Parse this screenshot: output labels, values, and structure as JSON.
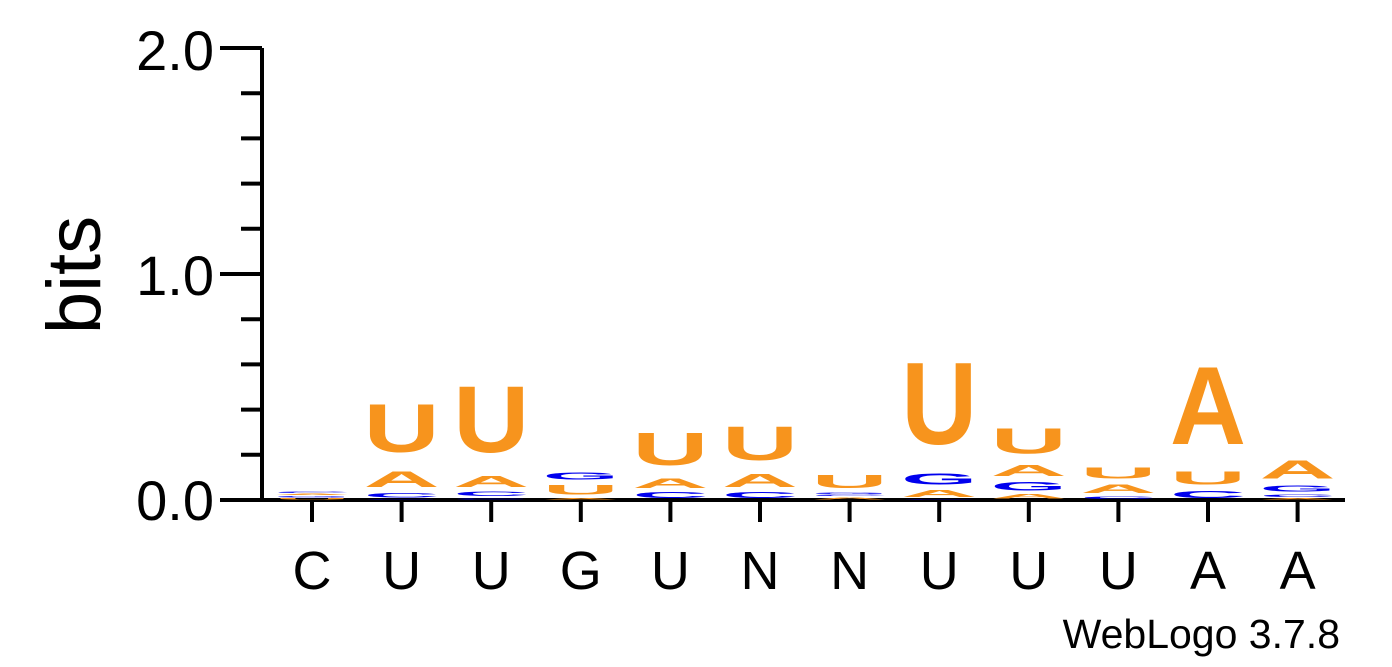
{
  "chart_data": {
    "type": "sequence-logo",
    "footer": "WebLogo 3.7.8",
    "xlabel": "",
    "ylabel": "bits",
    "ylim": [
      0,
      2
    ],
    "y_ticks": [
      "0.0",
      "1.0",
      "2.0"
    ],
    "categories": [
      "C",
      "U",
      "U",
      "G",
      "U",
      "N",
      "N",
      "U",
      "U",
      "U",
      "A",
      "A"
    ],
    "colors": {
      "A": "#f7941d",
      "U": "#f7941d",
      "G": "#0000ee",
      "C": "#0000ee"
    },
    "stacks": [
      [
        {
          "letter": "U",
          "height": 0.01
        },
        {
          "letter": "G",
          "height": 0.01
        },
        {
          "letter": "A",
          "height": 0.01
        },
        {
          "letter": "C",
          "height": 0.01
        }
      ],
      [
        {
          "letter": "G",
          "height": 0.005
        },
        {
          "letter": "C",
          "height": 0.03
        },
        {
          "letter": "A",
          "height": 0.11
        },
        {
          "letter": "U",
          "height": 0.34
        }
      ],
      [
        {
          "letter": "C",
          "height": 0.005
        },
        {
          "letter": "G",
          "height": 0.006
        },
        {
          "letter": "C",
          "height": 0.03
        },
        {
          "letter": "A",
          "height": 0.08
        },
        {
          "letter": "U",
          "height": 0.47
        }
      ],
      [
        {
          "letter": "A",
          "height": 0.01
        },
        {
          "letter": "U",
          "height": 0.07
        },
        {
          "letter": "G",
          "height": 0.05
        }
      ],
      [
        {
          "letter": "C",
          "height": 0.04
        },
        {
          "letter": "A",
          "height": 0.07
        },
        {
          "letter": "U",
          "height": 0.23
        }
      ],
      [
        {
          "letter": "C",
          "height": 0.04
        },
        {
          "letter": "A",
          "height": 0.09
        },
        {
          "letter": "U",
          "height": 0.24
        }
      ],
      [
        {
          "letter": "A",
          "height": 0.015
        },
        {
          "letter": "C",
          "height": 0.01
        },
        {
          "letter": "G",
          "height": 0.01
        },
        {
          "letter": "U",
          "height": 0.09
        }
      ],
      [
        {
          "letter": "C",
          "height": 0.003
        },
        {
          "letter": "A",
          "height": 0.05
        },
        {
          "letter": "G",
          "height": 0.08
        },
        {
          "letter": "U",
          "height": 0.58
        }
      ],
      [
        {
          "letter": "A",
          "height": 0.03
        },
        {
          "letter": "G",
          "height": 0.06
        },
        {
          "letter": "A",
          "height": 0.08
        },
        {
          "letter": "U",
          "height": 0.18
        }
      ],
      [
        {
          "letter": "C",
          "height": 0.02
        },
        {
          "letter": "A",
          "height": 0.06
        },
        {
          "letter": "U",
          "height": 0.08
        }
      ],
      [
        {
          "letter": "C",
          "height": 0.05
        },
        {
          "letter": "U",
          "height": 0.09
        },
        {
          "letter": "A",
          "height": 0.55
        }
      ],
      [
        {
          "letter": "A",
          "height": 0.01
        },
        {
          "letter": "C",
          "height": 0.02
        },
        {
          "letter": "G",
          "height": 0.04
        },
        {
          "letter": "A",
          "height": 0.13
        }
      ]
    ]
  }
}
